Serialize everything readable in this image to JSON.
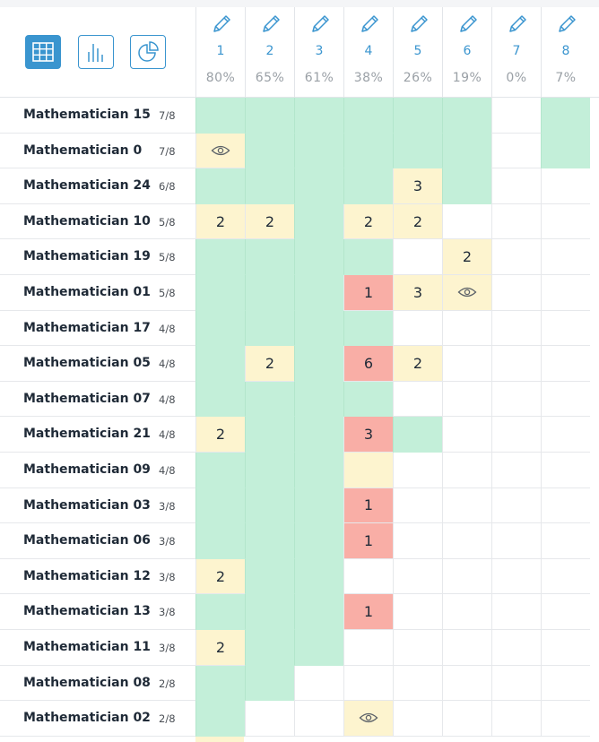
{
  "toolbar": {
    "views": [
      {
        "name": "grid-view-icon",
        "active": true
      },
      {
        "name": "bar-chart-view-icon",
        "active": false
      },
      {
        "name": "pie-chart-view-icon",
        "active": false
      }
    ]
  },
  "questions": [
    {
      "number": "1",
      "percent": "80%"
    },
    {
      "number": "2",
      "percent": "65%"
    },
    {
      "number": "3",
      "percent": "61%"
    },
    {
      "number": "4",
      "percent": "38%"
    },
    {
      "number": "5",
      "percent": "26%"
    },
    {
      "number": "6",
      "percent": "19%"
    },
    {
      "number": "7",
      "percent": "0%"
    },
    {
      "number": "8",
      "percent": "7%"
    }
  ],
  "colors": {
    "accent": "#3a95cf",
    "correct": "#c3efd9",
    "partial": "#fdf4cf",
    "wrong": "#f9aea6"
  },
  "rows": [
    {
      "name": "Mathematician 15",
      "score": "7/8",
      "cells": [
        [
          "correct",
          ""
        ],
        [
          "correct",
          ""
        ],
        [
          "correct",
          ""
        ],
        [
          "correct",
          ""
        ],
        [
          "correct",
          ""
        ],
        [
          "correct",
          ""
        ],
        [
          "empty",
          ""
        ],
        [
          "correct",
          ""
        ]
      ]
    },
    {
      "name": "Mathematician 0",
      "score": "7/8",
      "cells": [
        [
          "partial",
          "eye"
        ],
        [
          "correct",
          ""
        ],
        [
          "correct",
          ""
        ],
        [
          "correct",
          ""
        ],
        [
          "correct",
          ""
        ],
        [
          "correct",
          ""
        ],
        [
          "empty",
          ""
        ],
        [
          "correct",
          ""
        ]
      ]
    },
    {
      "name": "Mathematician 24",
      "score": "6/8",
      "cells": [
        [
          "correct",
          ""
        ],
        [
          "correct",
          ""
        ],
        [
          "correct",
          ""
        ],
        [
          "correct",
          ""
        ],
        [
          "partial",
          "3"
        ],
        [
          "correct",
          ""
        ],
        [
          "empty",
          ""
        ],
        [
          "empty",
          ""
        ]
      ]
    },
    {
      "name": "Mathematician 10",
      "score": "5/8",
      "cells": [
        [
          "partial",
          "2"
        ],
        [
          "partial",
          "2"
        ],
        [
          "correct",
          ""
        ],
        [
          "partial",
          "2"
        ],
        [
          "partial",
          "2"
        ],
        [
          "empty",
          ""
        ],
        [
          "empty",
          ""
        ],
        [
          "empty",
          ""
        ]
      ]
    },
    {
      "name": "Mathematician 19",
      "score": "5/8",
      "cells": [
        [
          "correct",
          ""
        ],
        [
          "correct",
          ""
        ],
        [
          "correct",
          ""
        ],
        [
          "correct",
          ""
        ],
        [
          "empty",
          ""
        ],
        [
          "partial",
          "2"
        ],
        [
          "empty",
          ""
        ],
        [
          "empty",
          ""
        ]
      ]
    },
    {
      "name": "Mathematician 01",
      "score": "5/8",
      "cells": [
        [
          "correct",
          ""
        ],
        [
          "correct",
          ""
        ],
        [
          "correct",
          ""
        ],
        [
          "wrong",
          "1"
        ],
        [
          "partial",
          "3"
        ],
        [
          "partial",
          "eye"
        ],
        [
          "empty",
          ""
        ],
        [
          "empty",
          ""
        ]
      ]
    },
    {
      "name": "Mathematician 17",
      "score": "4/8",
      "cells": [
        [
          "correct",
          ""
        ],
        [
          "correct",
          ""
        ],
        [
          "correct",
          ""
        ],
        [
          "correct",
          ""
        ],
        [
          "empty",
          ""
        ],
        [
          "empty",
          ""
        ],
        [
          "empty",
          ""
        ],
        [
          "empty",
          ""
        ]
      ]
    },
    {
      "name": "Mathematician 05",
      "score": "4/8",
      "cells": [
        [
          "correct",
          ""
        ],
        [
          "partial",
          "2"
        ],
        [
          "correct",
          ""
        ],
        [
          "wrong",
          "6"
        ],
        [
          "partial",
          "2"
        ],
        [
          "empty",
          ""
        ],
        [
          "empty",
          ""
        ],
        [
          "empty",
          ""
        ]
      ]
    },
    {
      "name": "Mathematician 07",
      "score": "4/8",
      "cells": [
        [
          "correct",
          ""
        ],
        [
          "correct",
          ""
        ],
        [
          "correct",
          ""
        ],
        [
          "correct",
          ""
        ],
        [
          "empty",
          ""
        ],
        [
          "empty",
          ""
        ],
        [
          "empty",
          ""
        ],
        [
          "empty",
          ""
        ]
      ]
    },
    {
      "name": "Mathematician 21",
      "score": "4/8",
      "cells": [
        [
          "partial",
          "2"
        ],
        [
          "correct",
          ""
        ],
        [
          "correct",
          ""
        ],
        [
          "wrong",
          "3"
        ],
        [
          "correct",
          ""
        ],
        [
          "empty",
          ""
        ],
        [
          "empty",
          ""
        ],
        [
          "empty",
          ""
        ]
      ]
    },
    {
      "name": "Mathematician 09",
      "score": "4/8",
      "cells": [
        [
          "correct",
          ""
        ],
        [
          "correct",
          ""
        ],
        [
          "correct",
          ""
        ],
        [
          "partial",
          ""
        ],
        [
          "empty",
          ""
        ],
        [
          "empty",
          ""
        ],
        [
          "empty",
          ""
        ],
        [
          "empty",
          ""
        ]
      ]
    },
    {
      "name": "Mathematician 03",
      "score": "3/8",
      "cells": [
        [
          "correct",
          ""
        ],
        [
          "correct",
          ""
        ],
        [
          "correct",
          ""
        ],
        [
          "wrong",
          "1"
        ],
        [
          "empty",
          ""
        ],
        [
          "empty",
          ""
        ],
        [
          "empty",
          ""
        ],
        [
          "empty",
          ""
        ]
      ]
    },
    {
      "name": "Mathematician 06",
      "score": "3/8",
      "cells": [
        [
          "correct",
          ""
        ],
        [
          "correct",
          ""
        ],
        [
          "correct",
          ""
        ],
        [
          "wrong",
          "1"
        ],
        [
          "empty",
          ""
        ],
        [
          "empty",
          ""
        ],
        [
          "empty",
          ""
        ],
        [
          "empty",
          ""
        ]
      ]
    },
    {
      "name": "Mathematician 12",
      "score": "3/8",
      "cells": [
        [
          "partial",
          "2"
        ],
        [
          "correct",
          ""
        ],
        [
          "correct",
          ""
        ],
        [
          "empty",
          ""
        ],
        [
          "empty",
          ""
        ],
        [
          "empty",
          ""
        ],
        [
          "empty",
          ""
        ],
        [
          "empty",
          ""
        ]
      ]
    },
    {
      "name": "Mathematician 13",
      "score": "3/8",
      "cells": [
        [
          "correct",
          ""
        ],
        [
          "correct",
          ""
        ],
        [
          "correct",
          ""
        ],
        [
          "wrong",
          "1"
        ],
        [
          "empty",
          ""
        ],
        [
          "empty",
          ""
        ],
        [
          "empty",
          ""
        ],
        [
          "empty",
          ""
        ]
      ]
    },
    {
      "name": "Mathematician 11",
      "score": "3/8",
      "cells": [
        [
          "partial",
          "2"
        ],
        [
          "correct",
          ""
        ],
        [
          "correct",
          ""
        ],
        [
          "empty",
          ""
        ],
        [
          "empty",
          ""
        ],
        [
          "empty",
          ""
        ],
        [
          "empty",
          ""
        ],
        [
          "empty",
          ""
        ]
      ]
    },
    {
      "name": "Mathematician 08",
      "score": "2/8",
      "cells": [
        [
          "correct",
          ""
        ],
        [
          "correct",
          ""
        ],
        [
          "empty",
          ""
        ],
        [
          "empty",
          ""
        ],
        [
          "empty",
          ""
        ],
        [
          "empty",
          ""
        ],
        [
          "empty",
          ""
        ],
        [
          "empty",
          ""
        ]
      ]
    },
    {
      "name": "Mathematician 02",
      "score": "2/8",
      "cells": [
        [
          "correct",
          ""
        ],
        [
          "empty",
          ""
        ],
        [
          "empty",
          ""
        ],
        [
          "partial",
          "eye"
        ],
        [
          "empty",
          ""
        ],
        [
          "empty",
          ""
        ],
        [
          "empty",
          ""
        ],
        [
          "empty",
          ""
        ]
      ]
    }
  ]
}
